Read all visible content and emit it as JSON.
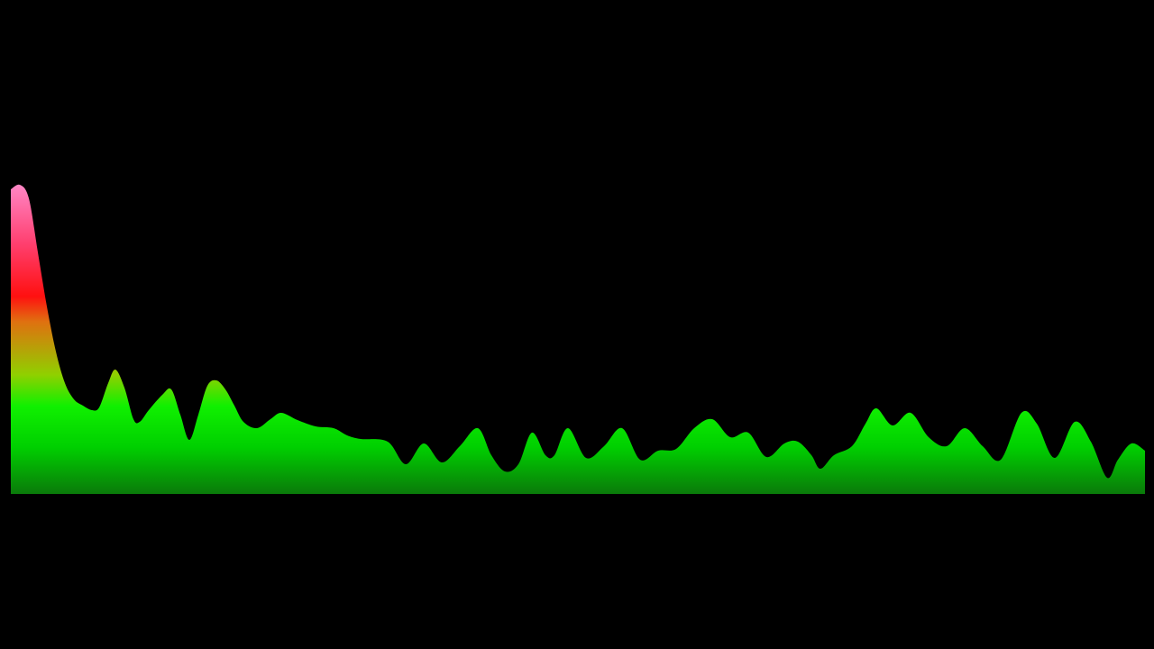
{
  "chart_data": {
    "type": "area",
    "x": [
      12,
      22,
      32,
      42,
      52,
      62,
      72,
      82,
      92,
      102,
      110,
      120,
      128,
      138,
      148,
      155,
      165,
      180,
      190,
      200,
      210,
      220,
      230,
      240,
      250,
      260,
      270,
      285,
      300,
      312,
      330,
      350,
      370,
      385,
      400,
      430,
      450,
      470,
      490,
      510,
      530,
      545,
      560,
      575,
      590,
      605,
      615,
      630,
      650,
      670,
      690,
      710,
      730,
      750,
      770,
      790,
      810,
      830,
      850,
      870,
      885,
      900,
      910,
      925,
      945,
      960,
      972,
      990,
      1010,
      1030,
      1050,
      1070,
      1090,
      1110,
      1133,
      1150,
      1170,
      1192,
      1210,
      1228,
      1240,
      1255,
      1270
    ],
    "values": [
      338,
      343,
      328,
      268,
      208,
      158,
      123,
      105,
      98,
      93,
      96,
      123,
      138,
      118,
      83,
      80,
      93,
      110,
      116,
      88,
      60,
      88,
      120,
      126,
      116,
      98,
      80,
      73,
      83,
      90,
      82,
      75,
      73,
      65,
      61,
      58,
      33,
      56,
      35,
      53,
      73,
      43,
      25,
      33,
      68,
      43,
      43,
      73,
      40,
      53,
      73,
      38,
      48,
      50,
      73,
      83,
      63,
      68,
      41,
      56,
      58,
      43,
      28,
      43,
      53,
      78,
      95,
      76,
      90,
      63,
      53,
      73,
      53,
      38,
      90,
      78,
      40,
      80,
      58,
      18,
      38,
      56,
      48
    ],
    "xlim": [
      12,
      1270
    ],
    "ylim": [
      0,
      348
    ]
  }
}
